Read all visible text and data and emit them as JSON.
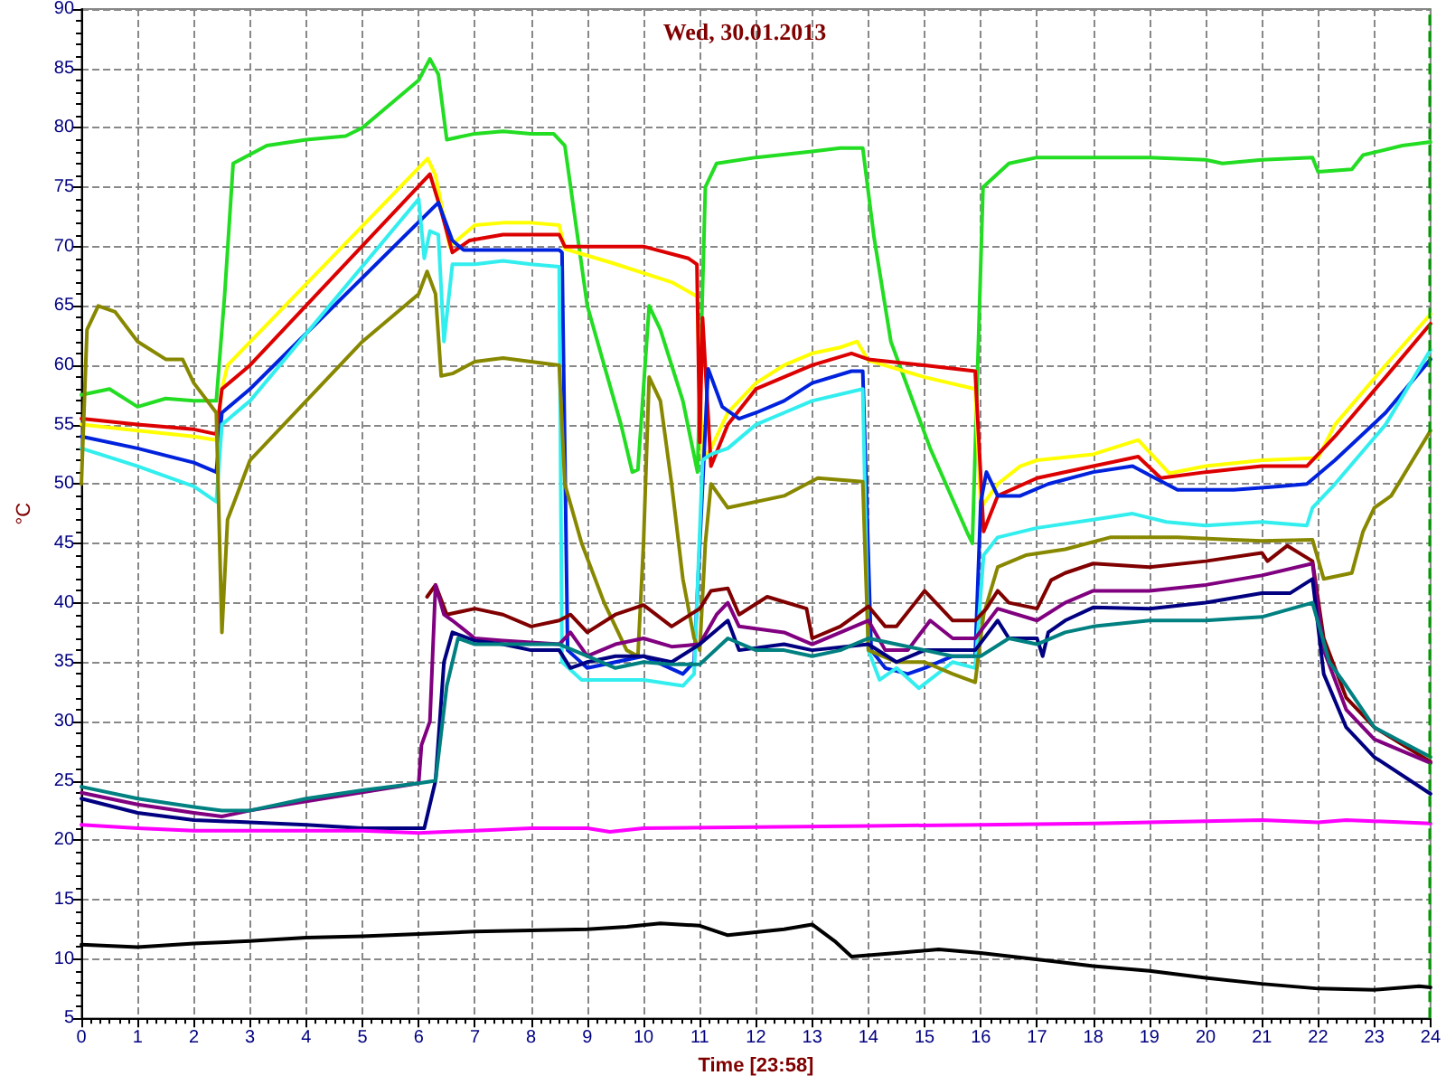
{
  "chart_data": {
    "type": "line",
    "title": "Wed, 30.01.2013",
    "xlabel": "Time [23:58]",
    "ylabel": "°C",
    "xlim": [
      0,
      24
    ],
    "xticks": [
      0,
      1,
      2,
      3,
      4,
      5,
      6,
      7,
      8,
      9,
      10,
      11,
      12,
      13,
      14,
      15,
      16,
      17,
      18,
      19,
      20,
      21,
      22,
      23,
      24
    ],
    "ylim": [
      5,
      90
    ],
    "yticks": [
      5,
      10,
      15,
      20,
      25,
      30,
      35,
      40,
      45,
      50,
      55,
      60,
      65,
      70,
      75,
      80,
      85,
      90
    ],
    "grid": true,
    "marker": "none",
    "line_style": "solid",
    "ref_lines": [
      {
        "axis": "x",
        "value": 23.97,
        "label": null,
        "color": "#009900",
        "line_style": "dashed"
      }
    ],
    "series": [
      {
        "color": "#22dd22",
        "x": [
          0,
          0.5,
          1,
          1.5,
          2,
          2.4,
          2.55,
          2.7,
          3.3,
          4,
          4.7,
          5,
          5.5,
          6,
          6.2,
          6.35,
          6.5,
          7,
          7.5,
          8,
          8.4,
          8.6,
          9,
          9.3,
          9.6,
          9.8,
          9.9,
          10.1,
          10.3,
          10.7,
          10.96,
          11.1,
          11.3,
          12,
          13,
          13.5,
          13.9,
          14.1,
          14.4,
          15.1,
          15.75,
          15.85,
          16.04,
          16.5,
          17,
          18,
          19,
          20,
          20.3,
          21,
          21.9,
          22,
          22.6,
          22.8,
          23.5,
          24
        ],
        "values": [
          57.5,
          58,
          56.5,
          57.2,
          57,
          57,
          66,
          77,
          78.5,
          79,
          79.3,
          80,
          82,
          84,
          85.8,
          84.5,
          79,
          79.5,
          79.7,
          79.5,
          79.5,
          78.5,
          65,
          60,
          55,
          51,
          51.2,
          65,
          63,
          57,
          51,
          75,
          77,
          77.5,
          78,
          78.3,
          78.3,
          70.8,
          62,
          53,
          46,
          45,
          75,
          77,
          77.5,
          77.5,
          77.5,
          77.3,
          77,
          77.3,
          77.5,
          76.3,
          76.5,
          77.7,
          78.5,
          78.8
        ]
      },
      {
        "color": "#ffff00",
        "x": [
          0,
          1,
          2,
          2.4,
          2.5,
          2.6,
          6.16,
          6.3,
          6.55,
          7,
          7.5,
          8,
          8.5,
          8.6,
          9.45,
          10.5,
          10.95,
          11.05,
          11.2,
          11.5,
          12,
          12.5,
          13,
          13.5,
          13.8,
          14,
          15,
          15.9,
          16,
          16.3,
          16.7,
          17,
          18,
          18.8,
          19.35,
          20,
          21,
          22,
          22.3,
          23.2,
          24
        ],
        "values": [
          55,
          54.5,
          54,
          53.7,
          58,
          60,
          77.4,
          76,
          70,
          71.8,
          72,
          72,
          71.8,
          69.8,
          68.6,
          67,
          65.8,
          52,
          53,
          56,
          58.5,
          60,
          61,
          61.5,
          62,
          60.4,
          59,
          58,
          48,
          50,
          51.5,
          52,
          52.5,
          53.7,
          50.9,
          51.5,
          52,
          52.2,
          55,
          60,
          64.3
        ]
      },
      {
        "color": "#dd0000",
        "x": [
          0,
          1,
          2,
          2.4,
          2.5,
          3,
          6.2,
          6.4,
          6.6,
          6.9,
          7.5,
          8.5,
          8.6,
          10,
          10.8,
          10.95,
          11,
          11.05,
          11.2,
          11.5,
          12,
          13,
          13.7,
          14,
          15,
          15.9,
          16.05,
          16.3,
          17,
          18,
          18.8,
          19.2,
          20,
          21,
          21.8,
          22.3,
          23.2,
          24
        ],
        "values": [
          55.5,
          55,
          54.6,
          54.2,
          58,
          60,
          76.1,
          73,
          69.5,
          70.5,
          71,
          71,
          70,
          70,
          69,
          68.5,
          53.5,
          64,
          51.5,
          55,
          58,
          60,
          61,
          60.5,
          60,
          59.5,
          46,
          49,
          50.5,
          51.5,
          52.3,
          50.5,
          51,
          51.5,
          51.5,
          54,
          59,
          63.5
        ]
      },
      {
        "color": "#0022dd",
        "x": [
          0,
          1,
          2,
          2.4,
          2.5,
          3,
          6.35,
          6.6,
          6.8,
          8.5,
          8.55,
          8.65,
          9,
          10,
          10.7,
          10.9,
          11.15,
          11.4,
          11.7,
          12,
          12.5,
          13,
          13.7,
          13.9,
          14.05,
          14.3,
          14.7,
          15,
          15.5,
          15.9,
          16,
          16.1,
          16.3,
          16.7,
          17.2,
          18,
          18.7,
          19.1,
          19.5,
          20.5,
          21.3,
          21.8,
          22.3,
          23.2,
          24
        ],
        "values": [
          54,
          53,
          51.8,
          51,
          56,
          58,
          73.7,
          70.5,
          69.7,
          69.7,
          69.5,
          36,
          34.5,
          35.5,
          34,
          35,
          59.7,
          56.5,
          55.5,
          56,
          57,
          58.5,
          59.5,
          59.5,
          36,
          34.5,
          34,
          34.5,
          35.5,
          35.5,
          48.5,
          51,
          49,
          49,
          50,
          51,
          51.5,
          50.5,
          49.5,
          49.5,
          49.8,
          50,
          52,
          56,
          60.5
        ]
      },
      {
        "color": "#33eeee",
        "x": [
          0,
          1,
          2,
          2.4,
          2.5,
          3,
          6.0,
          6.1,
          6.2,
          6.35,
          6.45,
          6.6,
          7,
          7.5,
          8,
          8.5,
          8.55,
          8.9,
          10,
          10.7,
          10.9,
          11.05,
          11.2,
          11.5,
          12,
          12.5,
          13,
          13.9,
          14.0,
          14.2,
          14.5,
          14.9,
          15.5,
          15.9,
          16.05,
          16.3,
          17,
          18,
          18.7,
          19.3,
          20,
          21,
          21.8,
          21.9,
          22.3,
          23.2,
          24
        ],
        "values": [
          53,
          51.5,
          49.8,
          48.5,
          55,
          57,
          74,
          69,
          71.3,
          71,
          62,
          68.5,
          68.5,
          68.8,
          68.5,
          68.3,
          35,
          33.5,
          33.5,
          33,
          34,
          52,
          52.5,
          53,
          55,
          56,
          57,
          58,
          36,
          33.5,
          34.5,
          32.8,
          35,
          34.5,
          44,
          45.5,
          46.3,
          47,
          47.5,
          46.8,
          46.5,
          46.8,
          46.5,
          48,
          50,
          55,
          61.3
        ]
      },
      {
        "color": "#888800",
        "x": [
          0,
          0.1,
          0.3,
          0.6,
          1,
          1.5,
          1.8,
          2,
          2.4,
          2.5,
          2.6,
          3,
          4,
          5,
          6,
          6.15,
          6.3,
          6.4,
          6.6,
          7,
          7.5,
          8,
          8.5,
          8.6,
          8.9,
          9.3,
          9.7,
          9.9,
          10,
          10.1,
          10.3,
          10.5,
          10.7,
          10.9,
          11,
          11.1,
          11.2,
          11.5,
          12.5,
          13.1,
          13.9,
          14,
          14.5,
          15,
          15.5,
          15.9,
          16.05,
          16.3,
          16.8,
          17.5,
          18.3,
          19.5,
          20.5,
          21,
          21.9,
          22.1,
          22.6,
          22.8,
          23,
          23.3,
          24
        ],
        "values": [
          50,
          63,
          65,
          64.5,
          62,
          60.5,
          60.5,
          58.5,
          56,
          37.5,
          47,
          52,
          57,
          62,
          66,
          67.9,
          66,
          59.1,
          59.3,
          60.3,
          60.6,
          60.3,
          60,
          50,
          45,
          40,
          36,
          35.5,
          45,
          59,
          57,
          50,
          42,
          37,
          36,
          45,
          50,
          48,
          49,
          50.5,
          50.2,
          36,
          35,
          35,
          34,
          33.3,
          39,
          43,
          44,
          44.5,
          45.5,
          45.5,
          45.3,
          45.2,
          45.3,
          42,
          42.5,
          46,
          48,
          49,
          54.5
        ]
      },
      {
        "color": "#800000",
        "x": [
          6.15,
          6.3,
          6.5,
          7,
          7.5,
          8,
          8.5,
          8.7,
          9,
          9.5,
          10,
          10.5,
          11,
          11.2,
          11.5,
          11.7,
          12.2,
          12.9,
          13,
          13.5,
          14,
          14.3,
          14.5,
          15,
          15.5,
          15.9,
          16.1,
          16.3,
          16.5,
          17,
          17.25,
          17.5,
          18,
          19,
          20,
          21,
          21.1,
          21.45,
          21.9,
          22.1,
          22.5,
          23,
          24
        ],
        "values": [
          40.5,
          41.5,
          39,
          39.5,
          39,
          38,
          38.5,
          39,
          37.5,
          39,
          39.8,
          38,
          39.5,
          41,
          41.2,
          39,
          40.5,
          39.5,
          37,
          38,
          39.7,
          38,
          38,
          41,
          38.5,
          38.5,
          39.5,
          41,
          40,
          39.5,
          41.9,
          42.5,
          43.3,
          43,
          43.5,
          44.2,
          43.5,
          44.8,
          43.5,
          37,
          32,
          29.5,
          26.6
        ]
      },
      {
        "color": "#800080",
        "x": [
          0,
          1,
          2,
          2.5,
          3,
          6,
          6.05,
          6.2,
          6.3,
          6.45,
          6.6,
          7,
          7.5,
          8.5,
          8.7,
          9,
          9.5,
          10,
          10.5,
          11,
          11.3,
          11.5,
          11.7,
          12.5,
          13,
          14,
          14.3,
          14.7,
          15.1,
          15.5,
          15.9,
          16.3,
          17,
          17.5,
          18,
          19,
          20,
          21,
          21.9,
          22.1,
          22.5,
          23,
          24
        ],
        "values": [
          24,
          23,
          22.3,
          22,
          22.5,
          24.8,
          28,
          30,
          41.5,
          39,
          38.5,
          37,
          36.8,
          36.5,
          37.5,
          35.5,
          36.5,
          37,
          36.3,
          36.5,
          39,
          40,
          38,
          37.5,
          36.5,
          38.5,
          36,
          36,
          38.5,
          37,
          37,
          39.5,
          38.5,
          40,
          41,
          41,
          41.5,
          42.3,
          43.3,
          36,
          31,
          28.5,
          26.5
        ]
      },
      {
        "color": "#000080",
        "x": [
          0,
          1,
          2,
          3,
          4,
          5,
          6.1,
          6.3,
          6.45,
          6.6,
          7,
          7.5,
          8,
          8.5,
          8.7,
          9,
          9.5,
          10,
          10.5,
          11,
          11.5,
          11.7,
          12.5,
          13,
          14,
          14.5,
          15,
          15.5,
          15.9,
          16.3,
          16.5,
          17,
          17.1,
          17.2,
          17.5,
          18,
          19,
          20,
          21,
          21.5,
          21.9,
          22.1,
          22.5,
          23,
          24
        ],
        "values": [
          23.5,
          22.3,
          21.7,
          21.5,
          21.3,
          21,
          21,
          25,
          35,
          37.5,
          36.8,
          36.5,
          36,
          36,
          34.5,
          35,
          35.5,
          35.5,
          35,
          36.5,
          38.5,
          36,
          36.5,
          36,
          36.5,
          35,
          36,
          36,
          36,
          38.5,
          37,
          37,
          35.5,
          37.5,
          38.5,
          39.6,
          39.5,
          40,
          40.8,
          40.8,
          42,
          34,
          29.5,
          27,
          23.9
        ]
      },
      {
        "color": "#008080",
        "x": [
          0,
          1,
          2,
          2.5,
          3,
          4,
          5,
          6,
          6.3,
          6.5,
          6.7,
          7,
          8,
          8.5,
          9,
          9.5,
          10,
          10.5,
          11,
          11.5,
          12,
          12.5,
          13,
          13.5,
          14,
          14.5,
          15,
          15.5,
          16,
          16.5,
          17,
          17.5,
          18,
          19,
          20,
          21,
          21.9,
          22.2,
          22.5,
          23,
          24
        ],
        "values": [
          24.5,
          23.5,
          22.8,
          22.5,
          22.5,
          23.5,
          24.2,
          24.8,
          25,
          33,
          37,
          36.5,
          36.5,
          36.5,
          35.5,
          34.5,
          35,
          34.8,
          34.8,
          37,
          36,
          36,
          35.5,
          36,
          37,
          36.5,
          36,
          35.5,
          35.5,
          37,
          36.5,
          37.5,
          38,
          38.5,
          38.5,
          38.8,
          40,
          35,
          33,
          29.5,
          27
        ]
      },
      {
        "color": "#ff00ff",
        "x": [
          0,
          1,
          2,
          3,
          5,
          6,
          7,
          8,
          9,
          9.4,
          10,
          12,
          14,
          16,
          18,
          20,
          21,
          22,
          22.5,
          24
        ],
        "values": [
          21.3,
          21,
          20.8,
          20.8,
          20.8,
          20.6,
          20.8,
          21,
          21,
          20.7,
          21,
          21.1,
          21.2,
          21.3,
          21.4,
          21.6,
          21.7,
          21.5,
          21.7,
          21.4
        ]
      },
      {
        "color": "#000000",
        "x": [
          0,
          1,
          2,
          3,
          4,
          5,
          6,
          7,
          8,
          9,
          9.7,
          10.3,
          11,
          11.5,
          12.5,
          13,
          13.4,
          13.7,
          14.5,
          15.25,
          16,
          17.3,
          18,
          19,
          20,
          21,
          22,
          23,
          23.8,
          24
        ],
        "values": [
          11.2,
          11,
          11.3,
          11.5,
          11.8,
          11.9,
          12.1,
          12.3,
          12.4,
          12.5,
          12.7,
          13,
          12.8,
          12,
          12.5,
          12.9,
          11.5,
          10.2,
          10.5,
          10.8,
          10.5,
          9.8,
          9.4,
          9,
          8.4,
          7.9,
          7.5,
          7.4,
          7.7,
          7.6
        ]
      }
    ]
  }
}
